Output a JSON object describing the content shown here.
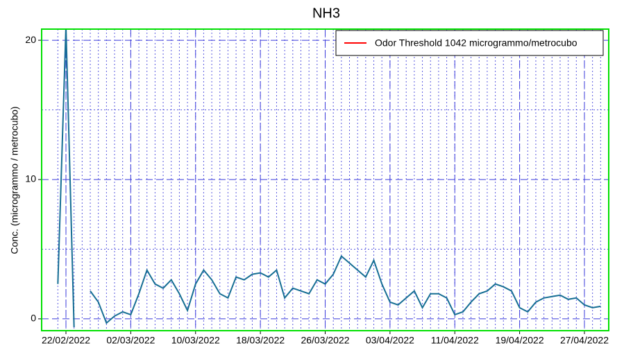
{
  "chart_data": {
    "type": "line",
    "title": "NH3",
    "ylabel": "Conc. (microgrammo / metrocubo)",
    "x": [
      "2022-02-21",
      "2022-02-22",
      "2022-02-23",
      "2022-02-24",
      "2022-02-25",
      "2022-02-26",
      "2022-02-27",
      "2022-02-28",
      "2022-03-01",
      "2022-03-02",
      "2022-03-03",
      "2022-03-04",
      "2022-03-05",
      "2022-03-06",
      "2022-03-07",
      "2022-03-08",
      "2022-03-09",
      "2022-03-10",
      "2022-03-11",
      "2022-03-12",
      "2022-03-13",
      "2022-03-14",
      "2022-03-15",
      "2022-03-16",
      "2022-03-17",
      "2022-03-18",
      "2022-03-19",
      "2022-03-20",
      "2022-03-21",
      "2022-03-22",
      "2022-03-23",
      "2022-03-24",
      "2022-03-25",
      "2022-03-26",
      "2022-03-27",
      "2022-03-28",
      "2022-03-29",
      "2022-03-30",
      "2022-03-31",
      "2022-04-01",
      "2022-04-02",
      "2022-04-03",
      "2022-04-04",
      "2022-04-05",
      "2022-04-06",
      "2022-04-07",
      "2022-04-08",
      "2022-04-09",
      "2022-04-10",
      "2022-04-11",
      "2022-04-12",
      "2022-04-13",
      "2022-04-14",
      "2022-04-15",
      "2022-04-16",
      "2022-04-17",
      "2022-04-18",
      "2022-04-19",
      "2022-04-20",
      "2022-04-21",
      "2022-04-22",
      "2022-04-23",
      "2022-04-24",
      "2022-04-25",
      "2022-04-26",
      "2022-04-27",
      "2022-04-28",
      "2022-04-29"
    ],
    "series": [
      {
        "name": "NH3",
        "color": "#166e94",
        "values": [
          2.5,
          21,
          -0.6,
          null,
          2.0,
          1.2,
          -0.3,
          0.2,
          0.5,
          0.3,
          1.8,
          3.5,
          2.5,
          2.2,
          2.8,
          1.8,
          0.6,
          2.5,
          3.5,
          2.8,
          1.8,
          1.5,
          3.0,
          2.8,
          3.2,
          3.3,
          3.0,
          3.5,
          1.5,
          2.2,
          2.0,
          1.8,
          2.8,
          2.5,
          3.2,
          4.5,
          4.0,
          3.5,
          3.0,
          4.2,
          2.5,
          1.2,
          1.0,
          1.5,
          2.0,
          0.8,
          1.8,
          1.8,
          1.5,
          0.3,
          0.5,
          1.2,
          1.8,
          2.0,
          2.5,
          2.3,
          2.0,
          0.8,
          0.5,
          1.2,
          1.5,
          1.6,
          1.7,
          1.4,
          1.5,
          1.0,
          0.8,
          0.9
        ]
      }
    ],
    "threshold": {
      "name": "Odor Threshold 1042 microgrammo/metrocubo",
      "value": 1042,
      "color": "#ff0000"
    },
    "legend": "upper right",
    "xlim": [
      "2022-02-19",
      "2022-04-30"
    ],
    "xticks": [
      {
        "value": "2022-02-22",
        "label": "22/02/2022"
      },
      {
        "value": "2022-03-02",
        "label": "02/03/2022"
      },
      {
        "value": "2022-03-10",
        "label": "10/03/2022"
      },
      {
        "value": "2022-03-18",
        "label": "18/03/2022"
      },
      {
        "value": "2022-03-26",
        "label": "26/03/2022"
      },
      {
        "value": "2022-04-03",
        "label": "03/04/2022"
      },
      {
        "value": "2022-04-11",
        "label": "11/04/2022"
      },
      {
        "value": "2022-04-19",
        "label": "19/04/2022"
      },
      {
        "value": "2022-04-27",
        "label": "27/04/2022"
      }
    ],
    "ylim": [
      -0.85,
      20.8
    ],
    "yticks": [
      0,
      10,
      20
    ],
    "yticks_minor": [
      5,
      15
    ],
    "grid": true
  }
}
